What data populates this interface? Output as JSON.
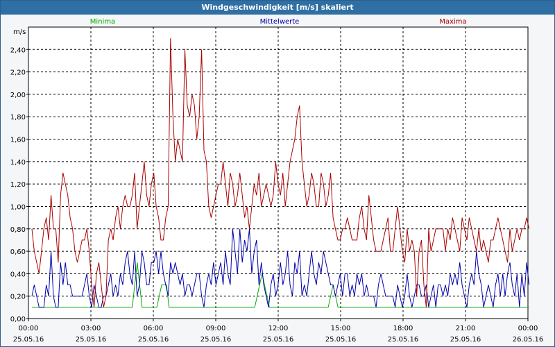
{
  "window": {
    "title": "Windgeschwindigkeit [m/s] skaliert"
  },
  "colors": {
    "plot_bg": "#ffffff",
    "grid": "#000000",
    "minima": "#00aa00",
    "mittel": "#0000aa",
    "maxima": "#aa0000"
  },
  "chart_data": {
    "type": "line",
    "title": "Windgeschwindigkeit [m/s] skaliert",
    "ylabel": "m/s",
    "ylim": [
      0,
      2.6
    ],
    "xlim": [
      "25.05.16 00:00",
      "26.05.16 00:00"
    ],
    "y_ticks": [
      "0,00",
      "0,20",
      "0,40",
      "0,60",
      "0,80",
      "1,00",
      "1,20",
      "1,40",
      "1,60",
      "1,80",
      "2,00",
      "2,20",
      "2,40"
    ],
    "x_ticks": [
      {
        "time": "00:00",
        "date": "25.05.16"
      },
      {
        "time": "03:00",
        "date": "25.05.16"
      },
      {
        "time": "06:00",
        "date": "25.05.16"
      },
      {
        "time": "09:00",
        "date": "25.05.16"
      },
      {
        "time": "12:00",
        "date": "25.05.16"
      },
      {
        "time": "15:00",
        "date": "25.05.16"
      },
      {
        "time": "18:00",
        "date": "25.05.16"
      },
      {
        "time": "21:00",
        "date": "25.05.16"
      },
      {
        "time": "00:00",
        "date": "26.05.16"
      }
    ],
    "grid": true,
    "legend_position": "top",
    "sample_interval_minutes": 10,
    "series": [
      {
        "name": "Minima",
        "color": "#00aa00",
        "values": [
          0.1,
          0.1,
          0.1,
          0.1,
          0.1,
          0.1,
          0.1,
          0.1,
          0.1,
          0.1,
          0.1,
          0.1,
          0.1,
          0.1,
          0.1,
          0.1,
          0.1,
          0.1,
          0.1,
          0.1,
          0.1,
          0.1,
          0.1,
          0.1,
          0.1,
          0.1,
          0.1,
          0.1,
          0.1,
          0.1,
          0.1,
          0.1,
          0.1,
          0.1,
          0.1,
          0.1,
          0.1,
          0.1,
          0.1,
          0.1,
          0.1,
          0.1,
          0.3,
          0.5,
          0.3,
          0.1,
          0.1,
          0.1,
          0.1,
          0.1,
          0.1,
          0.1,
          0.2,
          0.3,
          0.3,
          0.3,
          0.1,
          0.1,
          0.1,
          0.1,
          0.1,
          0.1,
          0.1,
          0.1,
          0.1,
          0.1,
          0.1,
          0.1,
          0.1,
          0.1,
          0.1,
          0.1,
          0.1,
          0.1,
          0.1,
          0.1,
          0.1,
          0.1,
          0.1,
          0.1,
          0.1,
          0.1,
          0.1,
          0.1,
          0.1,
          0.1,
          0.1,
          0.1,
          0.1,
          0.1,
          0.1,
          0.1,
          0.2,
          0.3,
          0.4,
          0.3,
          0.2,
          0.1,
          0.1,
          0.1,
          0.1,
          0.1,
          0.1,
          0.1,
          0.1,
          0.1,
          0.1,
          0.1,
          0.1,
          0.1,
          0.1,
          0.1,
          0.1,
          0.1,
          0.1,
          0.1,
          0.1,
          0.1,
          0.1,
          0.1,
          0.1,
          0.1,
          0.2,
          0.3,
          0.2,
          0.1,
          0.1,
          0.1,
          0.1,
          0.1,
          0.1,
          0.1,
          0.1,
          0.1,
          0.1,
          0.1,
          0.1,
          0.1,
          0.1,
          0.1,
          0.1,
          0.1,
          0.1,
          0.1,
          0.1,
          0.1,
          0.1,
          0.1,
          0.1,
          0.1,
          0.1,
          0.1,
          0.1,
          0.1,
          0.1,
          0.1,
          0.1,
          0.1,
          0.1,
          0.1,
          0.1,
          0.1,
          0.1,
          0.1,
          0.1,
          0.1,
          0.1,
          0.1,
          0.1,
          0.1,
          0.1,
          0.1,
          0.1,
          0.1,
          0.1,
          0.1,
          0.1,
          0.1,
          0.1,
          0.1,
          0.1,
          0.1,
          0.1,
          0.1,
          0.1,
          0.1,
          0.1,
          0.1,
          0.1,
          0.1,
          0.1,
          0.1,
          0.1,
          0.1,
          0.1,
          0.1,
          0.1,
          0.1,
          0.1,
          0.1,
          0.1,
          0.1,
          0.1,
          0.1
        ]
      },
      {
        "name": "Mittelwerte",
        "color": "#0000aa",
        "values": [
          0.2,
          0.3,
          0.2,
          0.1,
          0.1,
          0.1,
          0.3,
          0.2,
          0.6,
          0.2,
          0.1,
          0.1,
          0.5,
          0.3,
          0.5,
          0.3,
          0.3,
          0.2,
          0.2,
          0.2,
          0.2,
          0.2,
          0.3,
          0.4,
          0.2,
          0.1,
          0.3,
          0.2,
          0.1,
          0.1,
          0.2,
          0.2,
          0.3,
          0.4,
          0.2,
          0.3,
          0.2,
          0.4,
          0.3,
          0.5,
          0.6,
          0.4,
          0.3,
          0.6,
          0.2,
          0.3,
          0.6,
          0.5,
          0.3,
          0.3,
          0.5,
          0.5,
          0.6,
          0.4,
          0.6,
          0.4,
          0.3,
          0.2,
          0.5,
          0.4,
          0.5,
          0.4,
          0.3,
          0.4,
          0.2,
          0.3,
          0.3,
          0.2,
          0.3,
          0.4,
          0.4,
          0.2,
          0.1,
          0.3,
          0.4,
          0.3,
          0.5,
          0.3,
          0.4,
          0.5,
          0.3,
          0.6,
          0.4,
          0.3,
          0.8,
          0.6,
          0.4,
          0.8,
          0.5,
          0.7,
          0.6,
          0.8,
          0.4,
          0.6,
          0.7,
          0.3,
          0.5,
          0.3,
          0.2,
          0.1,
          0.3,
          0.4,
          0.2,
          0.3,
          0.5,
          0.3,
          0.4,
          0.6,
          0.3,
          0.2,
          0.5,
          0.4,
          0.6,
          0.2,
          0.3,
          0.2,
          0.4,
          0.6,
          0.4,
          0.3,
          0.5,
          0.4,
          0.6,
          0.5,
          0.4,
          0.3,
          0.3,
          0.2,
          0.3,
          0.4,
          0.2,
          0.4,
          0.4,
          0.2,
          0.3,
          0.2,
          0.4,
          0.3,
          0.4,
          0.2,
          0.3,
          0.2,
          0.2,
          0.2,
          0.1,
          0.3,
          0.4,
          0.3,
          0.2,
          0.2,
          0.2,
          0.2,
          0.1,
          0.3,
          0.2,
          0.1,
          0.2,
          0.4,
          0.2,
          0.1,
          0.2,
          0.3,
          0.3,
          0.2,
          0.2,
          0.3,
          0.1,
          0.2,
          0.3,
          0.1,
          0.3,
          0.3,
          0.2,
          0.3,
          0.2,
          0.4,
          0.3,
          0.4,
          0.3,
          0.5,
          0.3,
          0.2,
          0.1,
          0.3,
          0.4,
          0.3,
          0.6,
          0.4,
          0.3,
          0.1,
          0.2,
          0.3,
          0.2,
          0.1,
          0.3,
          0.4,
          0.2,
          0.4,
          0.2,
          0.4,
          0.5,
          0.3,
          0.2,
          0.4,
          0.1,
          0.4,
          0.2,
          0.5,
          0.3
        ]
      },
      {
        "name": "Maxima",
        "color": "#aa0000",
        "values": [
          0.8,
          0.6,
          0.5,
          0.4,
          0.6,
          0.8,
          0.9,
          0.7,
          1.1,
          0.8,
          0.8,
          0.5,
          1.1,
          1.3,
          1.2,
          1.1,
          0.9,
          0.8,
          0.6,
          0.5,
          0.6,
          0.7,
          0.7,
          0.8,
          0.6,
          0.3,
          0.1,
          0.4,
          0.5,
          0.3,
          0.1,
          0.2,
          0.7,
          0.8,
          0.7,
          0.9,
          1.0,
          0.8,
          1.0,
          1.1,
          1.0,
          1.0,
          1.1,
          1.3,
          0.8,
          1.0,
          1.2,
          1.4,
          1.1,
          1.0,
          1.2,
          1.3,
          1.0,
          0.9,
          0.7,
          0.7,
          0.9,
          1.0,
          2.5,
          1.8,
          1.4,
          1.6,
          1.5,
          1.4,
          2.4,
          1.9,
          1.8,
          2.0,
          1.9,
          1.6,
          1.8,
          2.4,
          1.5,
          1.4,
          1.0,
          0.9,
          1.0,
          1.1,
          1.2,
          1.2,
          1.4,
          1.2,
          1.0,
          1.3,
          1.2,
          1.0,
          1.1,
          1.3,
          1.1,
          0.9,
          1.0,
          0.8,
          1.0,
          1.2,
          1.1,
          1.3,
          1.0,
          1.1,
          1.2,
          1.1,
          1.0,
          1.1,
          1.4,
          1.2,
          1.1,
          1.3,
          1.0,
          1.2,
          1.4,
          1.5,
          1.6,
          1.8,
          1.9,
          1.4,
          1.2,
          1.0,
          1.1,
          1.3,
          1.2,
          1.0,
          1.0,
          1.3,
          1.2,
          1.0,
          1.1,
          1.3,
          0.9,
          0.8,
          0.7,
          0.7,
          0.8,
          0.8,
          0.9,
          0.8,
          0.7,
          0.7,
          0.7,
          0.9,
          1.0,
          0.8,
          0.7,
          1.1,
          0.9,
          0.7,
          0.6,
          0.6,
          0.6,
          0.7,
          0.8,
          0.9,
          0.6,
          0.6,
          0.8,
          1.0,
          0.8,
          0.6,
          0.5,
          0.8,
          0.6,
          0.7,
          0.6,
          0.2,
          0.6,
          0.7,
          0.3,
          0.1,
          0.8,
          0.6,
          0.7,
          0.8,
          0.8,
          0.8,
          0.8,
          0.6,
          0.8,
          0.7,
          0.9,
          0.8,
          0.7,
          0.6,
          0.9,
          0.8,
          0.7,
          0.9,
          0.8,
          0.7,
          0.6,
          0.8,
          0.6,
          0.7,
          0.6,
          0.5,
          0.7,
          0.7,
          0.8,
          0.9,
          0.8,
          0.7,
          0.6,
          0.5,
          0.8,
          0.6,
          0.7,
          0.8,
          0.7,
          0.8,
          0.8,
          0.9,
          0.8
        ]
      }
    ]
  }
}
